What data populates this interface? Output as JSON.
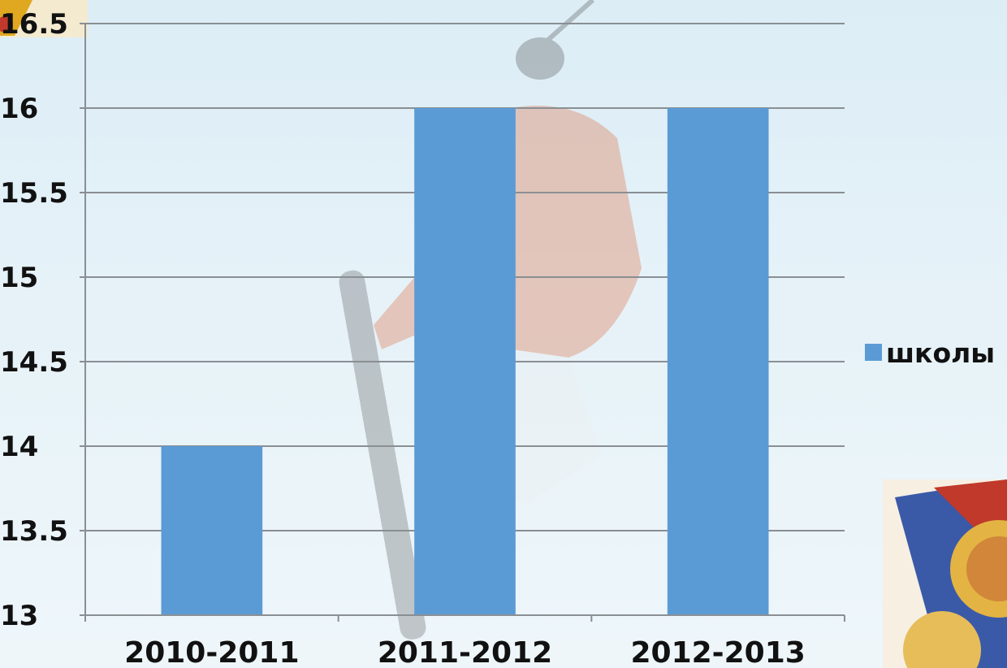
{
  "chart_data": {
    "type": "bar",
    "categories": [
      "2010-2011",
      "2011-2012",
      "2012-2013"
    ],
    "series": [
      {
        "name": "школы",
        "values": [
          14,
          16,
          16
        ],
        "color": "#5b9bd5"
      }
    ],
    "ylim": [
      13,
      16.5
    ],
    "yticks": [
      "13",
      "13.5",
      "14",
      "14.5",
      "15",
      "15.5",
      "16",
      "16.5"
    ],
    "grid": true,
    "legend_position": "right"
  },
  "decorations": {
    "background_image": "snowboarder-photo",
    "corner_badge_icon": "sports-society-badge-icon",
    "top-left-emblem-icon": "golden-emblem-icon"
  }
}
